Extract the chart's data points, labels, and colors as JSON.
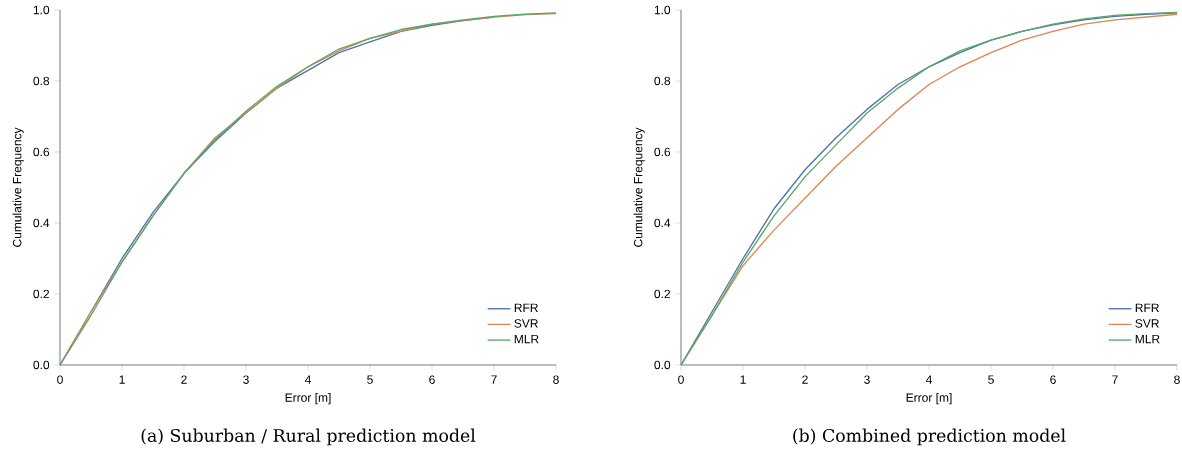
{
  "chart_data": [
    {
      "type": "line",
      "xlabel": "Error [m]",
      "ylabel": "Cumulative Frequency",
      "annotations": [
        "(a) Suburban / Rural prediction model"
      ],
      "xlim": [
        0,
        8
      ],
      "ylim": [
        0,
        1
      ],
      "xticks": [
        0,
        1,
        2,
        3,
        4,
        5,
        6,
        7,
        8
      ],
      "yticks": [
        {
          "value": 0,
          "label": "0.0"
        },
        {
          "value": 0.2,
          "label": "0.2"
        },
        {
          "value": 0.4,
          "label": "0.4"
        },
        {
          "value": 0.6,
          "label": "0.6"
        },
        {
          "value": 0.8,
          "label": "0.8"
        },
        {
          "value": 1,
          "label": "1.0"
        }
      ],
      "legend": "bottom right",
      "grid": false,
      "x": [
        0,
        0.5,
        1,
        1.5,
        2,
        2.5,
        3,
        3.5,
        4,
        4.5,
        5,
        5.5,
        6,
        6.5,
        7,
        7.5,
        8
      ],
      "series": [
        {
          "name": "RFR",
          "color": "#4c72b0",
          "values": [
            0,
            0.15,
            0.3,
            0.43,
            0.54,
            0.63,
            0.71,
            0.78,
            0.83,
            0.88,
            0.91,
            0.94,
            0.957,
            0.97,
            0.98,
            null,
            null
          ]
        },
        {
          "name": "SVR",
          "color": "#dd8452",
          "values": [
            0,
            0.15,
            0.29,
            0.42,
            0.54,
            0.64,
            0.71,
            0.78,
            0.84,
            0.885,
            0.92,
            0.94,
            0.96,
            0.97,
            0.98,
            0.987,
            0.99
          ]
        },
        {
          "name": "MLR",
          "color": "#55a868",
          "values": [
            0,
            0.14,
            0.29,
            0.42,
            0.54,
            0.635,
            0.715,
            0.785,
            0.84,
            0.89,
            0.92,
            0.945,
            0.96,
            0.972,
            0.982,
            0.988,
            0.992
          ]
        }
      ]
    },
    {
      "type": "line",
      "xlabel": "Error [m]",
      "ylabel": "Cumulative Frequency",
      "annotations": [
        "(b) Combined prediction model"
      ],
      "xlim": [
        0,
        8
      ],
      "ylim": [
        0,
        1
      ],
      "xticks": [
        0,
        1,
        2,
        3,
        4,
        5,
        6,
        7,
        8
      ],
      "yticks": [
        {
          "value": 0,
          "label": "0.0"
        },
        {
          "value": 0.2,
          "label": "0.2"
        },
        {
          "value": 0.4,
          "label": "0.4"
        },
        {
          "value": 0.6,
          "label": "0.6"
        },
        {
          "value": 0.8,
          "label": "0.8"
        },
        {
          "value": 1,
          "label": "1.0"
        }
      ],
      "legend": "bottom right",
      "grid": false,
      "x": [
        0,
        0.5,
        1,
        1.5,
        2,
        2.5,
        3,
        3.5,
        4,
        4.5,
        5,
        5.5,
        6,
        6.5,
        7,
        7.5,
        8
      ],
      "series": [
        {
          "name": "RFR",
          "color": "#4c72b0",
          "values": [
            0,
            0.15,
            0.3,
            0.44,
            0.55,
            0.64,
            0.72,
            0.79,
            0.84,
            0.88,
            0.915,
            0.94,
            0.958,
            0.972,
            0.982,
            0.988,
            0.992
          ]
        },
        {
          "name": "SVR",
          "color": "#dd8452",
          "values": [
            0,
            0.14,
            0.28,
            0.38,
            0.47,
            0.56,
            0.64,
            0.72,
            0.79,
            0.84,
            0.88,
            0.915,
            0.94,
            0.96,
            0.972,
            0.98,
            0.988
          ]
        },
        {
          "name": "MLR",
          "color": "#55a868",
          "values": [
            0,
            0.14,
            0.29,
            0.42,
            0.53,
            0.62,
            0.71,
            0.78,
            0.84,
            0.885,
            0.915,
            0.94,
            0.96,
            0.975,
            0.985,
            0.99,
            0.993
          ]
        }
      ]
    }
  ]
}
